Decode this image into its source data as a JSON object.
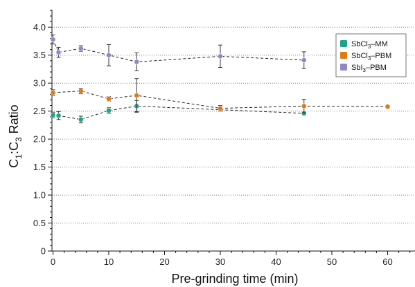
{
  "chart_data": {
    "type": "scatter",
    "xlabel": "Pre-grinding time (min)",
    "ylabel": "C1:C3 Ratio",
    "ylabel_parts": {
      "c": "C",
      "sub1": "1",
      "colon": ":C",
      "sub3": "3",
      "rest": " Ratio"
    },
    "xlim": [
      -1,
      65
    ],
    "ylim": [
      0,
      4.3
    ],
    "x_ticks": [
      "0",
      "10",
      "20",
      "30",
      "40",
      "50",
      "60"
    ],
    "y_ticks": [
      "0",
      "0.5",
      "1.0",
      "1.5",
      "2.0",
      "2.5",
      "3.0",
      "3.5",
      "4.0"
    ],
    "grid": "horizontal dotted",
    "legend_position": "top-right",
    "series": [
      {
        "name": "SbCl3–MM",
        "legend": {
          "base": "SbCl",
          "sub": "3",
          "suffix": "–MM"
        },
        "color": "#1fa485",
        "points": [
          {
            "x": 0,
            "y": 2.43,
            "err": 0.05
          },
          {
            "x": 1,
            "y": 2.42,
            "err": 0.07
          },
          {
            "x": 5,
            "y": 2.35,
            "err": 0.06
          },
          {
            "x": 10,
            "y": 2.51,
            "err": 0.05
          },
          {
            "x": 15,
            "y": 2.59,
            "err": 0.1
          },
          {
            "x": 45,
            "y": 2.46,
            "err": 0.03
          }
        ]
      },
      {
        "name": "SbCl3–PBM",
        "legend": {
          "base": "SbCl",
          "sub": "3",
          "suffix": "–PBM"
        },
        "color": "#e07b12",
        "points": [
          {
            "x": 0,
            "y": 2.83,
            "err": 0.05
          },
          {
            "x": 5,
            "y": 2.86,
            "err": 0.05
          },
          {
            "x": 10,
            "y": 2.72,
            "err": 0.04
          },
          {
            "x": 15,
            "y": 2.78,
            "err": 0.3
          },
          {
            "x": 30,
            "y": 2.55,
            "err": 0.05
          },
          {
            "x": 45,
            "y": 2.59,
            "err": 0.12
          },
          {
            "x": 60,
            "y": 2.58,
            "err": 0
          }
        ]
      },
      {
        "name": "SbI3–PBM",
        "legend": {
          "base": "SbI",
          "sub": "3",
          "suffix": "–PBM"
        },
        "color": "#8f89c4",
        "points": [
          {
            "x": 0,
            "y": 3.78,
            "err": 0.08
          },
          {
            "x": 1,
            "y": 3.55,
            "err": 0.09
          },
          {
            "x": 5,
            "y": 3.62,
            "err": 0.05
          },
          {
            "x": 10,
            "y": 3.5,
            "err": 0.19
          },
          {
            "x": 15,
            "y": 3.38,
            "err": 0.16
          },
          {
            "x": 30,
            "y": 3.48,
            "err": 0.2
          },
          {
            "x": 45,
            "y": 3.41,
            "err": 0.15
          }
        ]
      }
    ]
  }
}
